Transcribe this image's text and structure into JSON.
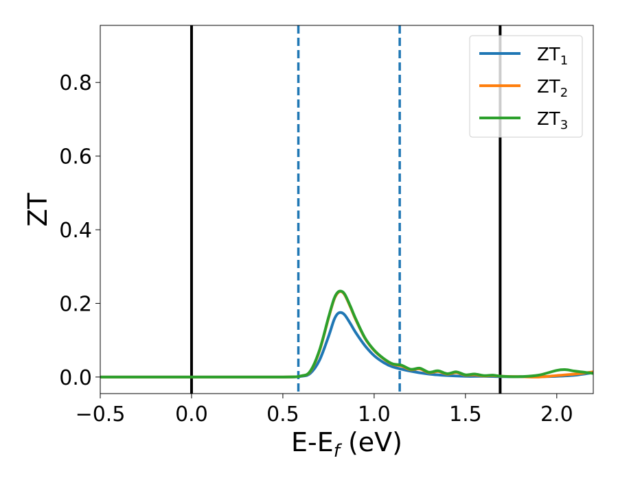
{
  "chart_data": {
    "type": "line",
    "xlabel": "E-E",
    "xlabel_sub": "f",
    "xlabel_unit": " (eV)",
    "ylabel": "ZT",
    "xlim": [
      -0.5,
      2.2
    ],
    "ylim": [
      -0.045,
      0.955
    ],
    "x_ticks": [
      -0.5,
      0.0,
      0.5,
      1.0,
      1.5,
      2.0
    ],
    "x_tick_labels": [
      "−0.5",
      "0.0",
      "0.5",
      "1.0",
      "1.5",
      "2.0"
    ],
    "y_ticks": [
      0.0,
      0.2,
      0.4,
      0.6,
      0.8
    ],
    "y_tick_labels": [
      "0.0",
      "0.2",
      "0.4",
      "0.6",
      "0.8"
    ],
    "grid": false,
    "legend_position": "top-right",
    "vlines": [
      {
        "x": 0.0,
        "style": "solid",
        "color": "#000000"
      },
      {
        "x": 1.69,
        "style": "solid",
        "color": "#000000"
      },
      {
        "x": 0.585,
        "style": "dashed",
        "color": "#1f77b4"
      },
      {
        "x": 1.14,
        "style": "dashed",
        "color": "#1f77b4"
      }
    ],
    "series": [
      {
        "name": "ZT",
        "name_sub": "1",
        "color": "#1f77b4",
        "x": [
          -0.5,
          0.0,
          0.5,
          0.6,
          0.65,
          0.7,
          0.75,
          0.78,
          0.8,
          0.82,
          0.84,
          0.87,
          0.9,
          0.95,
          1.0,
          1.05,
          1.1,
          1.2,
          1.3,
          1.4,
          1.5,
          1.6,
          1.7,
          1.8,
          1.9,
          2.0,
          2.1,
          2.2
        ],
        "y": [
          0.0,
          0.0,
          0.0,
          0.002,
          0.01,
          0.045,
          0.11,
          0.155,
          0.172,
          0.175,
          0.168,
          0.145,
          0.12,
          0.085,
          0.058,
          0.04,
          0.028,
          0.016,
          0.008,
          0.004,
          0.002,
          0.002,
          0.001,
          0.001,
          0.001,
          0.002,
          0.005,
          0.012
        ]
      },
      {
        "name": "ZT",
        "name_sub": "2",
        "color": "#ff7f0e",
        "x": [
          -0.5,
          0.0,
          0.5,
          0.6,
          0.65,
          0.7,
          0.75,
          0.78,
          0.8,
          0.82,
          0.84,
          0.87,
          0.9,
          0.95,
          1.0,
          1.05,
          1.1,
          1.15,
          1.2,
          1.25,
          1.3,
          1.35,
          1.4,
          1.45,
          1.5,
          1.55,
          1.6,
          1.65,
          1.7,
          1.8,
          1.9,
          2.0,
          2.1,
          2.2
        ],
        "y": [
          0.0,
          0.0,
          0.0,
          0.003,
          0.015,
          0.07,
          0.16,
          0.21,
          0.228,
          0.232,
          0.222,
          0.19,
          0.155,
          0.105,
          0.072,
          0.05,
          0.035,
          0.03,
          0.02,
          0.022,
          0.012,
          0.015,
          0.008,
          0.012,
          0.005,
          0.006,
          0.003,
          0.004,
          0.002,
          0.001,
          0.0,
          0.004,
          0.008,
          0.014
        ]
      },
      {
        "name": "ZT",
        "name_sub": "3",
        "color": "#2ca02c",
        "x": [
          -0.5,
          0.0,
          0.5,
          0.6,
          0.65,
          0.7,
          0.75,
          0.78,
          0.8,
          0.82,
          0.84,
          0.87,
          0.9,
          0.95,
          1.0,
          1.05,
          1.1,
          1.15,
          1.2,
          1.25,
          1.3,
          1.35,
          1.4,
          1.45,
          1.5,
          1.55,
          1.6,
          1.65,
          1.7,
          1.8,
          1.9,
          2.0,
          2.05,
          2.1,
          2.2
        ],
        "y": [
          0.0,
          0.0,
          0.0,
          0.003,
          0.016,
          0.072,
          0.162,
          0.212,
          0.23,
          0.233,
          0.224,
          0.192,
          0.157,
          0.106,
          0.073,
          0.051,
          0.036,
          0.032,
          0.021,
          0.024,
          0.013,
          0.017,
          0.009,
          0.014,
          0.006,
          0.008,
          0.004,
          0.005,
          0.002,
          0.001,
          0.005,
          0.018,
          0.02,
          0.016,
          0.01
        ]
      }
    ]
  }
}
